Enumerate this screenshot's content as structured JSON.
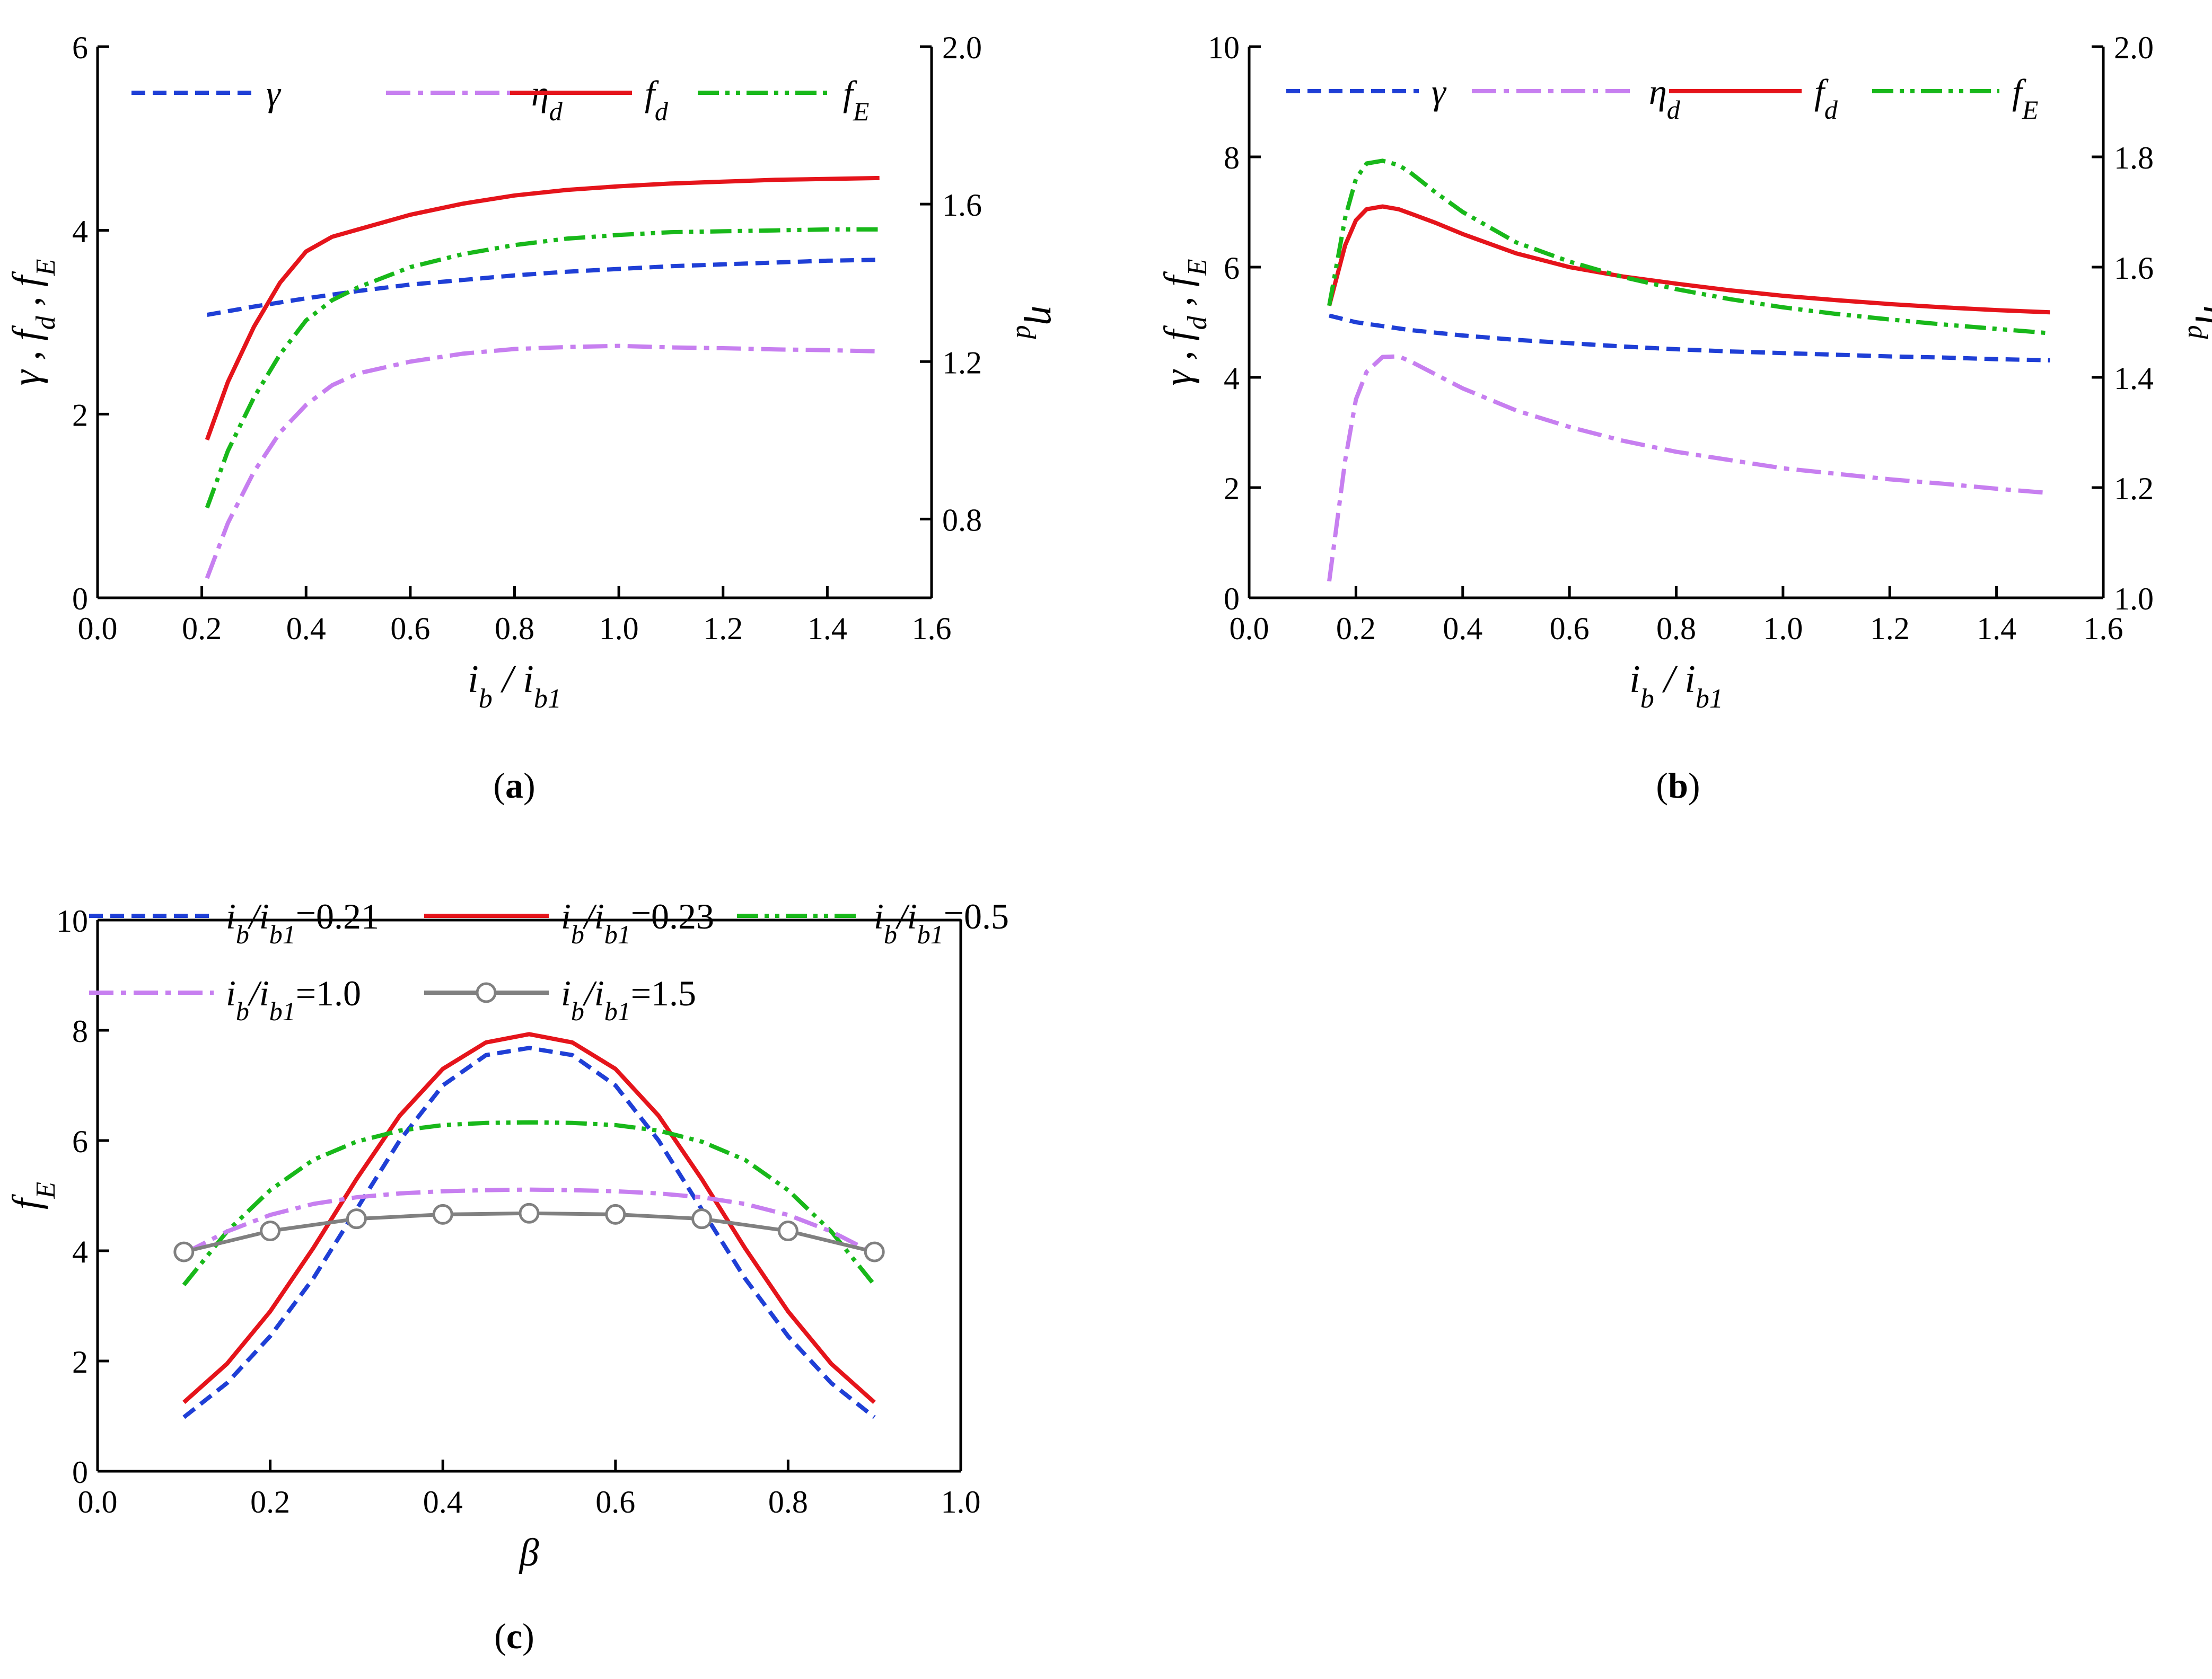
{
  "colors": {
    "gamma": "#1f3fd6",
    "eta": "#c77ff0",
    "fd": "#e5141b",
    "fE": "#18b81a",
    "r021": "#1f3fd6",
    "r023": "#e5141b",
    "r05": "#18b81a",
    "r10": "#c77ff0",
    "r15": "#808080"
  },
  "chart_data": [
    {
      "panel": "a",
      "type": "line",
      "caption": "a",
      "xlabel": "i_b / i_b1",
      "xlim": [
        0.0,
        1.6
      ],
      "xticks": [
        "0.0",
        "0.2",
        "0.4",
        "0.6",
        "0.8",
        "1.0",
        "1.2",
        "1.4",
        "1.6"
      ],
      "ylabel_left": "γ , f_d , f_E",
      "ylim_left": [
        0,
        6
      ],
      "yticks_left": [
        "0",
        "2",
        "4",
        "6"
      ],
      "ylabel_right": "η_d",
      "ylim_right": [
        0.6,
        2.0
      ],
      "yticks_right": [
        "0.8",
        "1.2",
        "1.6",
        "2.0"
      ],
      "legend": [
        "γ",
        "η_d",
        "f_d",
        "f_E"
      ],
      "series": [
        {
          "name": "γ",
          "axis": "left",
          "color_key": "gamma",
          "style": "dash",
          "x": [
            0.21,
            0.3,
            0.4,
            0.5,
            0.6,
            0.7,
            0.8,
            0.9,
            1.0,
            1.1,
            1.2,
            1.3,
            1.4,
            1.5
          ],
          "y": [
            3.08,
            3.17,
            3.26,
            3.34,
            3.41,
            3.46,
            3.51,
            3.55,
            3.58,
            3.61,
            3.63,
            3.65,
            3.67,
            3.68
          ]
        },
        {
          "name": "η_d",
          "axis": "right",
          "color_key": "eta",
          "style": "dashdot",
          "x": [
            0.21,
            0.25,
            0.3,
            0.35,
            0.4,
            0.45,
            0.5,
            0.6,
            0.7,
            0.8,
            0.9,
            1.0,
            1.1,
            1.2,
            1.3,
            1.4,
            1.5
          ],
          "y": [
            0.65,
            0.79,
            0.92,
            1.02,
            1.09,
            1.14,
            1.17,
            1.2,
            1.22,
            1.232,
            1.237,
            1.24,
            1.236,
            1.234,
            1.231,
            1.229,
            1.226
          ]
        },
        {
          "name": "f_d",
          "axis": "left",
          "color_key": "fd",
          "style": "solid",
          "x": [
            0.21,
            0.25,
            0.3,
            0.35,
            0.4,
            0.45,
            0.5,
            0.6,
            0.7,
            0.8,
            0.9,
            1.0,
            1.1,
            1.2,
            1.3,
            1.4,
            1.5
          ],
          "y": [
            1.72,
            2.35,
            2.95,
            3.43,
            3.77,
            3.93,
            4.01,
            4.17,
            4.29,
            4.38,
            4.44,
            4.48,
            4.51,
            4.53,
            4.55,
            4.56,
            4.57
          ]
        },
        {
          "name": "f_E",
          "axis": "left",
          "color_key": "fE",
          "style": "dashdotdot",
          "x": [
            0.21,
            0.25,
            0.3,
            0.35,
            0.4,
            0.45,
            0.5,
            0.6,
            0.7,
            0.8,
            0.9,
            1.0,
            1.1,
            1.2,
            1.3,
            1.4,
            1.5
          ],
          "y": [
            0.98,
            1.6,
            2.18,
            2.65,
            3.02,
            3.24,
            3.38,
            3.6,
            3.74,
            3.84,
            3.91,
            3.95,
            3.98,
            3.99,
            4.0,
            4.01,
            4.01
          ]
        }
      ]
    },
    {
      "panel": "b",
      "type": "line",
      "caption": "b",
      "xlabel": "i_b / i_b1",
      "xlim": [
        0.0,
        1.6
      ],
      "xticks": [
        "0.0",
        "0.2",
        "0.4",
        "0.6",
        "0.8",
        "1.0",
        "1.2",
        "1.4",
        "1.6"
      ],
      "ylabel_left": "γ , f_d , f_E",
      "ylim_left": [
        0,
        10
      ],
      "yticks_left": [
        "0",
        "2",
        "4",
        "6",
        "8",
        "10"
      ],
      "ylabel_right": "η_d",
      "ylim_right": [
        1.0,
        2.0
      ],
      "yticks_right": [
        "1.0",
        "1.2",
        "1.4",
        "1.6",
        "1.8",
        "2.0"
      ],
      "legend": [
        "γ",
        "η_d",
        "f_d",
        "f_E"
      ],
      "series": [
        {
          "name": "γ",
          "axis": "left",
          "color_key": "gamma",
          "style": "dash",
          "x": [
            0.15,
            0.2,
            0.3,
            0.4,
            0.5,
            0.6,
            0.7,
            0.8,
            0.9,
            1.0,
            1.1,
            1.2,
            1.3,
            1.4,
            1.5
          ],
          "y": [
            5.12,
            5.0,
            4.86,
            4.76,
            4.68,
            4.62,
            4.56,
            4.51,
            4.47,
            4.44,
            4.41,
            4.38,
            4.36,
            4.33,
            4.31
          ]
        },
        {
          "name": "η_d",
          "axis": "right",
          "color_key": "eta",
          "style": "dashdot",
          "x": [
            0.15,
            0.18,
            0.2,
            0.22,
            0.25,
            0.28,
            0.3,
            0.35,
            0.4,
            0.5,
            0.6,
            0.7,
            0.8,
            0.9,
            1.0,
            1.1,
            1.2,
            1.3,
            1.4,
            1.5
          ],
          "y": [
            1.03,
            1.25,
            1.36,
            1.41,
            1.437,
            1.438,
            1.43,
            1.405,
            1.38,
            1.34,
            1.31,
            1.285,
            1.265,
            1.25,
            1.235,
            1.225,
            1.215,
            1.207,
            1.198,
            1.19
          ]
        },
        {
          "name": "f_d",
          "axis": "left",
          "color_key": "fd",
          "style": "solid",
          "x": [
            0.15,
            0.18,
            0.2,
            0.22,
            0.25,
            0.28,
            0.3,
            0.35,
            0.4,
            0.5,
            0.6,
            0.7,
            0.8,
            0.9,
            1.0,
            1.1,
            1.2,
            1.3,
            1.4,
            1.5
          ],
          "y": [
            5.3,
            6.4,
            6.85,
            7.05,
            7.1,
            7.05,
            6.98,
            6.8,
            6.6,
            6.25,
            6.0,
            5.83,
            5.7,
            5.58,
            5.48,
            5.4,
            5.33,
            5.27,
            5.22,
            5.18
          ]
        },
        {
          "name": "f_E",
          "axis": "left",
          "color_key": "fE",
          "style": "dashdotdot",
          "x": [
            0.15,
            0.18,
            0.2,
            0.22,
            0.25,
            0.28,
            0.3,
            0.35,
            0.4,
            0.5,
            0.6,
            0.7,
            0.8,
            0.9,
            1.0,
            1.1,
            1.2,
            1.3,
            1.4,
            1.5
          ],
          "y": [
            5.3,
            6.9,
            7.6,
            7.88,
            7.93,
            7.85,
            7.73,
            7.35,
            7.0,
            6.45,
            6.1,
            5.82,
            5.6,
            5.42,
            5.27,
            5.15,
            5.05,
            4.96,
            4.88,
            4.8
          ]
        }
      ]
    },
    {
      "panel": "c",
      "type": "line",
      "caption": "c",
      "xlabel": "β",
      "xlim": [
        0.0,
        1.0
      ],
      "xticks": [
        "0.0",
        "0.2",
        "0.4",
        "0.6",
        "0.8",
        "1.0"
      ],
      "ylabel_left": "f_E",
      "ylim_left": [
        0,
        10
      ],
      "yticks_left": [
        "0",
        "2",
        "4",
        "6",
        "8",
        "10"
      ],
      "legend_prefix": "i_b/i_b1",
      "legend": [
        "=0.21",
        "=0.23",
        "=0.5",
        "=1.0",
        "=1.5"
      ],
      "series": [
        {
          "name": "i_b/i_b1=0.21",
          "color_key": "r021",
          "style": "dash",
          "x": [
            0.1,
            0.15,
            0.2,
            0.25,
            0.3,
            0.35,
            0.4,
            0.45,
            0.5,
            0.55,
            0.6,
            0.65,
            0.7,
            0.75,
            0.8,
            0.85,
            0.9
          ],
          "y": [
            0.98,
            1.6,
            2.45,
            3.5,
            4.75,
            6.0,
            7.0,
            7.55,
            7.68,
            7.55,
            7.0,
            6.0,
            4.75,
            3.5,
            2.45,
            1.6,
            0.98
          ]
        },
        {
          "name": "i_b/i_b1=0.23",
          "color_key": "r023",
          "style": "solid",
          "x": [
            0.1,
            0.15,
            0.2,
            0.25,
            0.3,
            0.35,
            0.4,
            0.45,
            0.5,
            0.55,
            0.6,
            0.65,
            0.7,
            0.75,
            0.8,
            0.85,
            0.9
          ],
          "y": [
            1.25,
            1.95,
            2.9,
            4.05,
            5.3,
            6.45,
            7.3,
            7.78,
            7.93,
            7.78,
            7.3,
            6.45,
            5.3,
            4.05,
            2.9,
            1.95,
            1.25
          ]
        },
        {
          "name": "i_b/i_b1=0.5",
          "color_key": "r05",
          "style": "dashdotdot",
          "x": [
            0.1,
            0.15,
            0.2,
            0.25,
            0.3,
            0.35,
            0.4,
            0.45,
            0.5,
            0.55,
            0.6,
            0.65,
            0.7,
            0.75,
            0.8,
            0.85,
            0.9
          ],
          "y": [
            3.38,
            4.35,
            5.1,
            5.65,
            5.98,
            6.18,
            6.28,
            6.32,
            6.33,
            6.32,
            6.28,
            6.18,
            5.98,
            5.65,
            5.1,
            4.35,
            3.38
          ]
        },
        {
          "name": "i_b/i_b1=1.0",
          "color_key": "r10",
          "style": "dashdot",
          "x": [
            0.1,
            0.15,
            0.2,
            0.25,
            0.3,
            0.35,
            0.4,
            0.45,
            0.5,
            0.55,
            0.6,
            0.65,
            0.7,
            0.75,
            0.8,
            0.85,
            0.9
          ],
          "y": [
            3.95,
            4.35,
            4.65,
            4.85,
            4.97,
            5.04,
            5.08,
            5.1,
            5.11,
            5.1,
            5.08,
            5.04,
            4.97,
            4.85,
            4.65,
            4.35,
            3.95
          ]
        },
        {
          "name": "i_b/i_b1=1.5",
          "color_key": "r15",
          "style": "solid-marker",
          "x": [
            0.1,
            0.2,
            0.3,
            0.4,
            0.5,
            0.6,
            0.7,
            0.8,
            0.9
          ],
          "y": [
            3.98,
            4.36,
            4.58,
            4.66,
            4.68,
            4.66,
            4.58,
            4.36,
            3.98
          ]
        }
      ]
    }
  ]
}
